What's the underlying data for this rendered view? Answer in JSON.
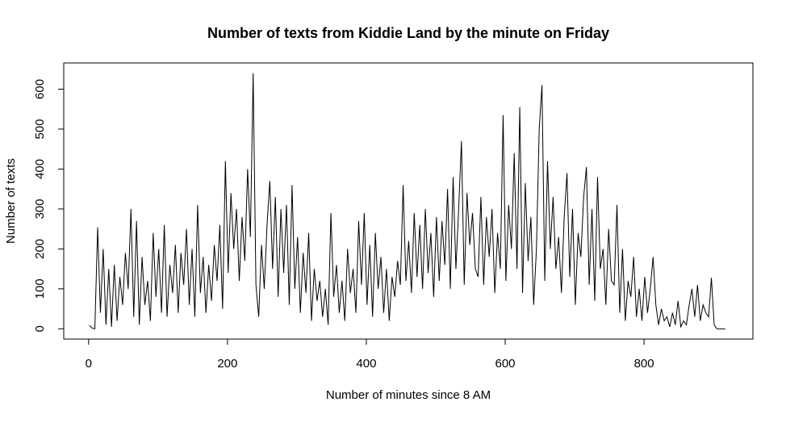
{
  "chart_data": {
    "type": "line",
    "title": "Number of texts from Kiddie Land by the minute on Friday",
    "x_label": "Number of minutes since 8 AM",
    "y_label": "Number of texts",
    "xlim": [
      -35.8,
      956.8
    ],
    "ylim": [
      -25.6,
      665.6
    ],
    "xticks": [
      0,
      200,
      400,
      600,
      800
    ],
    "yticks": [
      0,
      100,
      200,
      300,
      400,
      500,
      600
    ],
    "color": "#000000",
    "x": [
      1,
      5,
      9,
      13,
      17,
      21,
      25,
      29,
      33,
      37,
      41,
      45,
      49,
      53,
      57,
      61,
      65,
      69,
      73,
      77,
      81,
      85,
      89,
      93,
      97,
      101,
      105,
      109,
      113,
      117,
      121,
      125,
      129,
      133,
      137,
      141,
      145,
      149,
      153,
      157,
      161,
      165,
      169,
      173,
      177,
      181,
      185,
      189,
      193,
      197,
      201,
      205,
      209,
      213,
      217,
      221,
      225,
      229,
      233,
      237,
      241,
      245,
      249,
      253,
      257,
      261,
      265,
      269,
      273,
      277,
      281,
      285,
      289,
      293,
      297,
      301,
      305,
      309,
      313,
      317,
      321,
      325,
      329,
      333,
      337,
      341,
      345,
      349,
      353,
      357,
      361,
      365,
      369,
      373,
      377,
      381,
      385,
      389,
      393,
      397,
      401,
      405,
      409,
      413,
      417,
      421,
      425,
      429,
      433,
      437,
      441,
      445,
      449,
      453,
      457,
      461,
      465,
      469,
      473,
      477,
      481,
      485,
      489,
      493,
      497,
      501,
      505,
      509,
      513,
      517,
      521,
      525,
      529,
      533,
      537,
      541,
      545,
      549,
      553,
      557,
      561,
      565,
      569,
      573,
      577,
      581,
      585,
      589,
      593,
      597,
      601,
      605,
      609,
      613,
      617,
      621,
      625,
      629,
      633,
      637,
      641,
      645,
      649,
      653,
      657,
      661,
      665,
      669,
      673,
      677,
      681,
      685,
      689,
      693,
      697,
      701,
      705,
      709,
      713,
      717,
      721,
      725,
      729,
      733,
      737,
      741,
      745,
      749,
      753,
      757,
      761,
      765,
      769,
      773,
      777,
      781,
      785,
      789,
      793,
      797,
      801,
      805,
      809,
      813,
      817,
      821,
      825,
      829,
      833,
      837,
      841,
      845,
      849,
      853,
      857,
      861,
      865,
      869,
      873,
      877,
      881,
      885,
      889,
      893,
      897,
      901,
      905,
      909,
      913,
      917
    ],
    "values": [
      8,
      2,
      0,
      254,
      40,
      200,
      10,
      150,
      5,
      160,
      20,
      130,
      60,
      190,
      100,
      300,
      30,
      270,
      10,
      180,
      60,
      120,
      20,
      240,
      80,
      200,
      40,
      260,
      30,
      160,
      90,
      210,
      40,
      190,
      110,
      250,
      60,
      200,
      30,
      310,
      90,
      180,
      40,
      160,
      70,
      210,
      120,
      260,
      50,
      420,
      140,
      340,
      200,
      300,
      120,
      280,
      170,
      400,
      230,
      640,
      110,
      30,
      210,
      100,
      260,
      370,
      150,
      330,
      80,
      300,
      140,
      310,
      60,
      360,
      100,
      230,
      40,
      190,
      90,
      240,
      20,
      150,
      70,
      120,
      30,
      100,
      10,
      290,
      80,
      160,
      40,
      120,
      20,
      200,
      90,
      150,
      40,
      270,
      110,
      290,
      60,
      210,
      30,
      240,
      100,
      180,
      40,
      150,
      20,
      130,
      80,
      170,
      110,
      360,
      120,
      220,
      90,
      290,
      130,
      260,
      100,
      300,
      140,
      240,
      80,
      280,
      120,
      270,
      160,
      350,
      100,
      380,
      150,
      300,
      470,
      110,
      340,
      210,
      290,
      150,
      130,
      330,
      110,
      280,
      180,
      300,
      90,
      240,
      150,
      535,
      120,
      310,
      200,
      440,
      150,
      555,
      90,
      365,
      170,
      280,
      60,
      200,
      500,
      610,
      120,
      420,
      200,
      330,
      150,
      230,
      90,
      280,
      390,
      130,
      300,
      60,
      240,
      180,
      330,
      405,
      110,
      300,
      70,
      380,
      150,
      200,
      60,
      250,
      120,
      110,
      310,
      40,
      200,
      20,
      120,
      80,
      180,
      30,
      100,
      20,
      130,
      40,
      100,
      180,
      60,
      10,
      50,
      20,
      30,
      5,
      40,
      10,
      70,
      5,
      20,
      10,
      60,
      100,
      30,
      110,
      20,
      60,
      40,
      30,
      128,
      10,
      0,
      0,
      0,
      0
    ]
  }
}
